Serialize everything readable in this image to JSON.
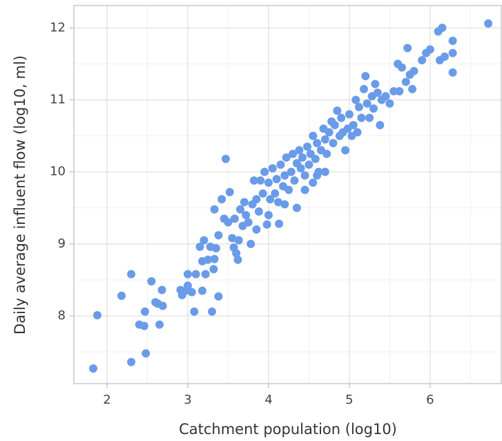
{
  "chart_data": {
    "type": "scatter",
    "x_label": "Catchment population (log10)",
    "y_label": "Daily average influent flow (log10, ml)",
    "xlim": [
      1.59,
      6.89
    ],
    "ylim": [
      7.06,
      12.31
    ],
    "xticks": [
      2,
      3,
      4,
      5,
      6
    ],
    "yticks": [
      8,
      9,
      10,
      11,
      12
    ],
    "grid": true,
    "minor_grid": true,
    "color": "#6a9be8",
    "x": [
      1.83,
      1.88,
      2.18,
      2.3,
      2.3,
      2.4,
      2.46,
      2.47,
      2.48,
      2.55,
      2.6,
      2.63,
      2.65,
      2.68,
      2.69,
      2.91,
      2.93,
      2.97,
      3.0,
      3.0,
      3.05,
      3.08,
      3.1,
      3.18,
      3.15,
      3.18,
      3.2,
      3.22,
      3.25,
      3.28,
      3.3,
      3.32,
      3.33,
      3.35,
      3.38,
      3.33,
      3.38,
      3.42,
      3.45,
      3.47,
      3.5,
      3.52,
      3.55,
      3.57,
      3.58,
      3.6,
      3.62,
      3.63,
      3.65,
      3.68,
      3.7,
      3.72,
      3.75,
      3.78,
      3.8,
      3.82,
      3.85,
      3.88,
      3.9,
      3.93,
      3.95,
      3.98,
      4.0,
      4.02,
      4.05,
      4.08,
      4.1,
      4.12,
      4.13,
      4.15,
      4.18,
      4.2,
      4.22,
      4.25,
      4.28,
      4.3,
      4.32,
      4.35,
      4.38,
      4.4,
      4.42,
      4.45,
      4.48,
      4.5,
      4.52,
      4.55,
      4.58,
      4.6,
      4.62,
      4.65,
      4.68,
      4.7,
      4.72,
      4.75,
      4.78,
      4.8,
      4.82,
      4.85,
      4.88,
      4.9,
      4.92,
      4.95,
      4.98,
      5.0,
      5.03,
      5.05,
      5.08,
      5.1,
      5.12,
      5.15,
      5.18,
      5.2,
      5.22,
      5.25,
      5.28,
      5.3,
      5.32,
      5.35,
      5.38,
      5.4,
      5.45,
      5.5,
      5.55,
      5.6,
      5.62,
      5.65,
      5.7,
      5.72,
      5.75,
      5.78,
      5.8,
      5.9,
      5.95,
      6.0,
      6.1,
      6.15,
      6.12,
      6.18,
      6.28,
      6.28,
      6.28,
      6.72,
      4.35,
      4.45,
      4.6,
      3.85,
      4.0,
      4.2,
      4.55,
      4.7
    ],
    "y": [
      7.27,
      8.01,
      8.28,
      8.58,
      7.36,
      7.88,
      7.86,
      8.06,
      7.48,
      8.48,
      8.19,
      8.17,
      7.88,
      8.36,
      8.14,
      8.36,
      8.29,
      8.35,
      8.58,
      8.42,
      8.33,
      8.06,
      8.58,
      8.35,
      8.96,
      8.76,
      9.05,
      8.58,
      8.78,
      8.96,
      8.06,
      8.65,
      8.79,
      8.94,
      8.27,
      9.48,
      9.12,
      9.62,
      9.35,
      10.18,
      9.3,
      9.72,
      9.08,
      8.95,
      9.35,
      8.87,
      8.78,
      9.05,
      9.48,
      9.25,
      9.58,
      9.4,
      9.3,
      9.0,
      9.55,
      9.88,
      9.62,
      9.45,
      9.88,
      9.7,
      10.0,
      9.27,
      9.85,
      9.62,
      10.05,
      9.7,
      9.9,
      9.58,
      9.28,
      10.1,
      9.8,
      9.95,
      10.2,
      9.75,
      10.0,
      10.25,
      9.88,
      10.12,
      10.3,
      10.05,
      10.2,
      9.95,
      10.35,
      10.1,
      10.25,
      10.5,
      10.18,
      10.4,
      10.0,
      10.3,
      10.6,
      10.45,
      10.25,
      10.55,
      10.7,
      10.4,
      10.65,
      10.85,
      10.5,
      10.75,
      10.55,
      10.3,
      10.6,
      10.8,
      10.5,
      10.65,
      11.0,
      10.55,
      10.9,
      10.75,
      11.15,
      11.33,
      10.95,
      10.75,
      11.05,
      10.88,
      11.22,
      11.1,
      10.65,
      11.0,
      11.05,
      10.95,
      11.12,
      11.5,
      11.12,
      11.45,
      11.25,
      11.72,
      11.35,
      11.15,
      11.4,
      11.55,
      11.65,
      11.7,
      11.95,
      12.0,
      11.55,
      11.6,
      11.82,
      11.65,
      11.38,
      12.06,
      9.5,
      9.75,
      9.95,
      9.2,
      9.4,
      9.55,
      9.85,
      10.0
    ]
  }
}
